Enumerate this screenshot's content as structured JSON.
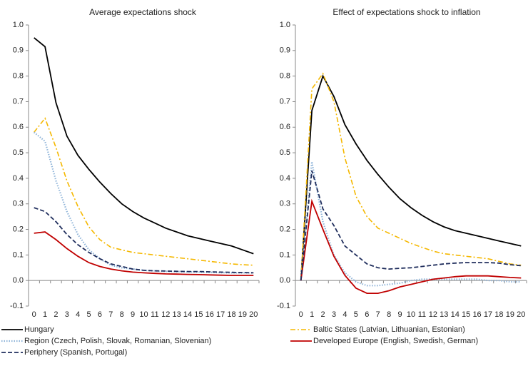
{
  "chart_data": [
    {
      "type": "line",
      "title": "Average expectations shock",
      "categories": [
        0,
        1,
        2,
        3,
        4,
        5,
        6,
        7,
        8,
        9,
        10,
        11,
        12,
        13,
        14,
        15,
        16,
        17,
        18,
        19,
        20
      ],
      "ylim": [
        -0.1,
        1.0
      ],
      "yticks": [
        -0.1,
        {
          "value": 0,
          "label": "0.0"
        },
        0.1,
        0.2,
        0.3,
        0.4,
        0.5,
        0.6,
        0.7,
        0.8,
        0.9,
        {
          "value": 1.0,
          "label": "1.0"
        }
      ],
      "series": [
        {
          "values": [
            0.95,
            0.915,
            0.695,
            0.565,
            0.49,
            0.435,
            0.385,
            0.34,
            0.3,
            0.27,
            0.245,
            0.225,
            0.205,
            0.19,
            0.175,
            0.165,
            0.155,
            0.145,
            0.135,
            0.12,
            0.105
          ]
        },
        {
          "values": [
            0.58,
            0.635,
            0.52,
            0.39,
            0.29,
            0.21,
            0.16,
            0.13,
            0.12,
            0.11,
            0.105,
            0.1,
            0.095,
            0.09,
            0.085,
            0.08,
            0.075,
            0.07,
            0.065,
            0.062,
            0.06
          ]
        },
        {
          "values": [
            0.58,
            0.545,
            0.39,
            0.27,
            0.18,
            0.12,
            0.085,
            0.06,
            0.05,
            0.045,
            0.04,
            0.038,
            0.036,
            0.035,
            0.034,
            0.033,
            0.032,
            0.031,
            0.03,
            0.03,
            0.03
          ]
        },
        {
          "values": [
            0.185,
            0.19,
            0.16,
            0.125,
            0.095,
            0.07,
            0.055,
            0.045,
            0.038,
            0.033,
            0.03,
            0.028,
            0.026,
            0.025,
            0.024,
            0.023,
            0.022,
            0.021,
            0.02,
            0.02,
            0.02
          ]
        },
        {
          "values": [
            0.285,
            0.27,
            0.23,
            0.18,
            0.14,
            0.11,
            0.085,
            0.065,
            0.055,
            0.045,
            0.04,
            0.038,
            0.037,
            0.036,
            0.035,
            0.035,
            0.034,
            0.033,
            0.032,
            0.031,
            0.03
          ]
        }
      ]
    },
    {
      "type": "line",
      "title": "Effect of expectations shock to inflation",
      "categories": [
        0,
        1,
        2,
        3,
        4,
        5,
        6,
        7,
        8,
        9,
        10,
        11,
        12,
        13,
        14,
        15,
        16,
        17,
        18,
        19,
        20
      ],
      "ylim": [
        -0.1,
        1.0
      ],
      "yticks": [
        -0.1,
        {
          "value": 0,
          "label": "0.0"
        },
        0.1,
        0.2,
        0.3,
        0.4,
        0.5,
        0.6,
        0.7,
        0.8,
        0.9,
        {
          "value": 1.0,
          "label": "1.0"
        }
      ],
      "series": [
        {
          "values": [
            0,
            0.665,
            0.8,
            0.72,
            0.61,
            0.535,
            0.47,
            0.415,
            0.365,
            0.32,
            0.285,
            0.255,
            0.23,
            0.21,
            0.195,
            0.185,
            0.175,
            0.165,
            0.155,
            0.145,
            0.135
          ]
        },
        {
          "values": [
            0,
            0.75,
            0.81,
            0.7,
            0.48,
            0.33,
            0.25,
            0.205,
            0.185,
            0.165,
            0.145,
            0.13,
            0.115,
            0.105,
            0.1,
            0.095,
            0.09,
            0.085,
            0.075,
            0.065,
            0.06
          ]
        },
        {
          "values": [
            0,
            0.465,
            0.23,
            0.1,
            0.03,
            -0.005,
            -0.02,
            -0.02,
            -0.015,
            -0.01,
            0,
            0.005,
            0.005,
            0.005,
            0.005,
            0.005,
            0.005,
            0,
            0,
            -0.005,
            -0.005
          ]
        },
        {
          "values": [
            0,
            0.31,
            0.2,
            0.095,
            0.02,
            -0.03,
            -0.05,
            -0.05,
            -0.04,
            -0.025,
            -0.015,
            -0.005,
            0.005,
            0.01,
            0.015,
            0.018,
            0.018,
            0.018,
            0.015,
            0.012,
            0.01
          ]
        },
        {
          "values": [
            0,
            0.43,
            0.28,
            0.215,
            0.135,
            0.1,
            0.065,
            0.05,
            0.045,
            0.048,
            0.05,
            0.055,
            0.06,
            0.065,
            0.068,
            0.07,
            0.07,
            0.07,
            0.068,
            0.062,
            0.058
          ]
        }
      ]
    }
  ],
  "legend": [
    {
      "name": "Hungary",
      "color": "#000000",
      "dash": "solid"
    },
    {
      "name": "Baltic States (Latvian, Lithuanian, Estonian)",
      "color": "#f5b800",
      "dash": "dash-dot"
    },
    {
      "name": "Region (Czech, Polish, Slovak, Romanian, Slovenian)",
      "color": "#8fb4d9",
      "dash": "dotted"
    },
    {
      "name": "Developed Europe (English, Swedish, German)",
      "color": "#c00000",
      "dash": "solid"
    },
    {
      "name": "Periphery (Spanish, Portugal)",
      "color": "#1f2d5c",
      "dash": "dashed"
    }
  ]
}
